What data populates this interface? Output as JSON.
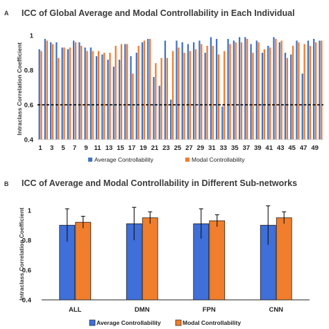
{
  "colors": {
    "average": "#4472c4",
    "modal": "#ed7d31",
    "average_b": "#3f6fd8",
    "modal_b": "#f07e2c"
  },
  "chart_data": [
    {
      "panel": "A",
      "type": "bar",
      "title": "ICC of Global Average and Modal Controllability in Each Individual",
      "ylabel": "Intraclass Correlation Coefficient",
      "xlabel": "",
      "ylim": [
        0.4,
        1.0
      ],
      "yticks": [
        "0.4",
        "0.6",
        "0.8",
        "1"
      ],
      "ytick_values": [
        0.4,
        0.6,
        0.8,
        1.0
      ],
      "reference_line": 0.6,
      "categories": [
        "1",
        "2",
        "3",
        "4",
        "5",
        "6",
        "7",
        "8",
        "9",
        "10",
        "11",
        "12",
        "13",
        "14",
        "15",
        "16",
        "17",
        "18",
        "19",
        "20",
        "21",
        "22",
        "23",
        "24",
        "25",
        "26",
        "27",
        "28",
        "29",
        "30",
        "31",
        "32",
        "33",
        "34",
        "35",
        "36",
        "37",
        "38",
        "39",
        "40",
        "41",
        "42",
        "43",
        "44",
        "45",
        "46",
        "47",
        "48",
        "49",
        "50"
      ],
      "xtick_labels": [
        "1",
        "3",
        "5",
        "7",
        "9",
        "11",
        "13",
        "15",
        "17",
        "19",
        "21",
        "23",
        "25",
        "27",
        "29",
        "31",
        "33",
        "35",
        "37",
        "39",
        "41",
        "43",
        "45",
        "47",
        "49"
      ],
      "series": [
        {
          "name": "Average Controllability",
          "values": [
            0.92,
            0.98,
            0.96,
            0.96,
            0.93,
            0.92,
            0.97,
            0.96,
            0.93,
            0.93,
            0.88,
            0.89,
            0.86,
            0.82,
            0.86,
            0.95,
            0.88,
            0.9,
            0.96,
            0.98,
            0.76,
            0.71,
            0.97,
            0.63,
            0.97,
            0.96,
            0.95,
            0.96,
            0.97,
            0.9,
            0.99,
            0.98,
            0.59,
            0.98,
            0.97,
            0.99,
            0.99,
            0.95,
            0.97,
            0.9,
            0.94,
            0.99,
            0.96,
            0.9,
            0.89,
            0.97,
            0.78,
            0.97,
            0.98,
            0.97
          ]
        },
        {
          "name": "Modal Controllability",
          "values": [
            0.91,
            0.97,
            0.95,
            0.87,
            0.93,
            0.93,
            0.96,
            0.94,
            0.91,
            0.91,
            0.91,
            0.9,
            0.9,
            0.94,
            0.95,
            0.95,
            0.78,
            0.94,
            0.97,
            0.98,
            0.84,
            0.87,
            0.87,
            0.91,
            0.93,
            0.9,
            0.91,
            0.92,
            0.95,
            0.94,
            0.94,
            0.89,
            0.91,
            0.95,
            0.96,
            0.96,
            0.98,
            0.9,
            0.96,
            0.92,
            0.93,
            0.98,
            0.97,
            0.87,
            0.94,
            0.96,
            0.95,
            0.94,
            0.96,
            0.97
          ]
        }
      ],
      "legend": [
        "Average Controllability",
        "Modal Controllability"
      ],
      "legend_position": "bottom"
    },
    {
      "panel": "B",
      "type": "bar",
      "title": "ICC of Average and Modal Controllability in Different Sub-networks",
      "ylabel": "Intraclass Correlation Coefficient",
      "xlabel": "",
      "ylim": [
        0.4,
        1.0
      ],
      "yticks": [
        "0.4",
        "0.6",
        "0.8",
        "1"
      ],
      "ytick_values": [
        0.4,
        0.6,
        0.8,
        1.0
      ],
      "categories": [
        "ALL",
        "DMN",
        "FPN",
        "CNN"
      ],
      "series": [
        {
          "name": "Average Controllability",
          "values": [
            0.9,
            0.91,
            0.91,
            0.9
          ],
          "error": [
            0.11,
            0.11,
            0.1,
            0.13
          ]
        },
        {
          "name": "Modal Controllability",
          "values": [
            0.92,
            0.95,
            0.93,
            0.95
          ],
          "error": [
            0.04,
            0.04,
            0.04,
            0.04
          ]
        }
      ],
      "legend": [
        "Average Controllability",
        "Modal Controllability"
      ],
      "legend_position": "bottom"
    }
  ]
}
